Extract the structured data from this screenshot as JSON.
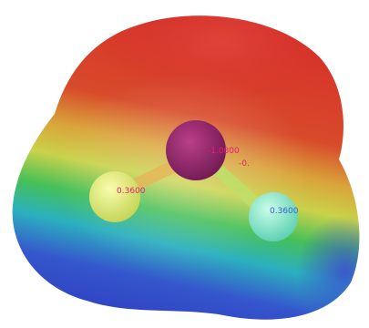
{
  "viewer": {
    "molecule": "water",
    "surface": "electrostatic-potential",
    "colormap": [
      "#d92a2a",
      "#e08a2a",
      "#e8d43a",
      "#4cc75a",
      "#27b3c7",
      "#3a4fd0"
    ],
    "background": "#ffffff",
    "label_color": "#e0207a",
    "atoms": [
      {
        "element": "O",
        "charge_label": "-1.0800",
        "color": "#8a1a6a"
      },
      {
        "element": "H",
        "charge_label": "0.3600",
        "color": "#f2f27a"
      },
      {
        "element": "H",
        "charge_label": "0.3600",
        "color": "#7ff0c8"
      }
    ],
    "partial_label": "-0."
  }
}
